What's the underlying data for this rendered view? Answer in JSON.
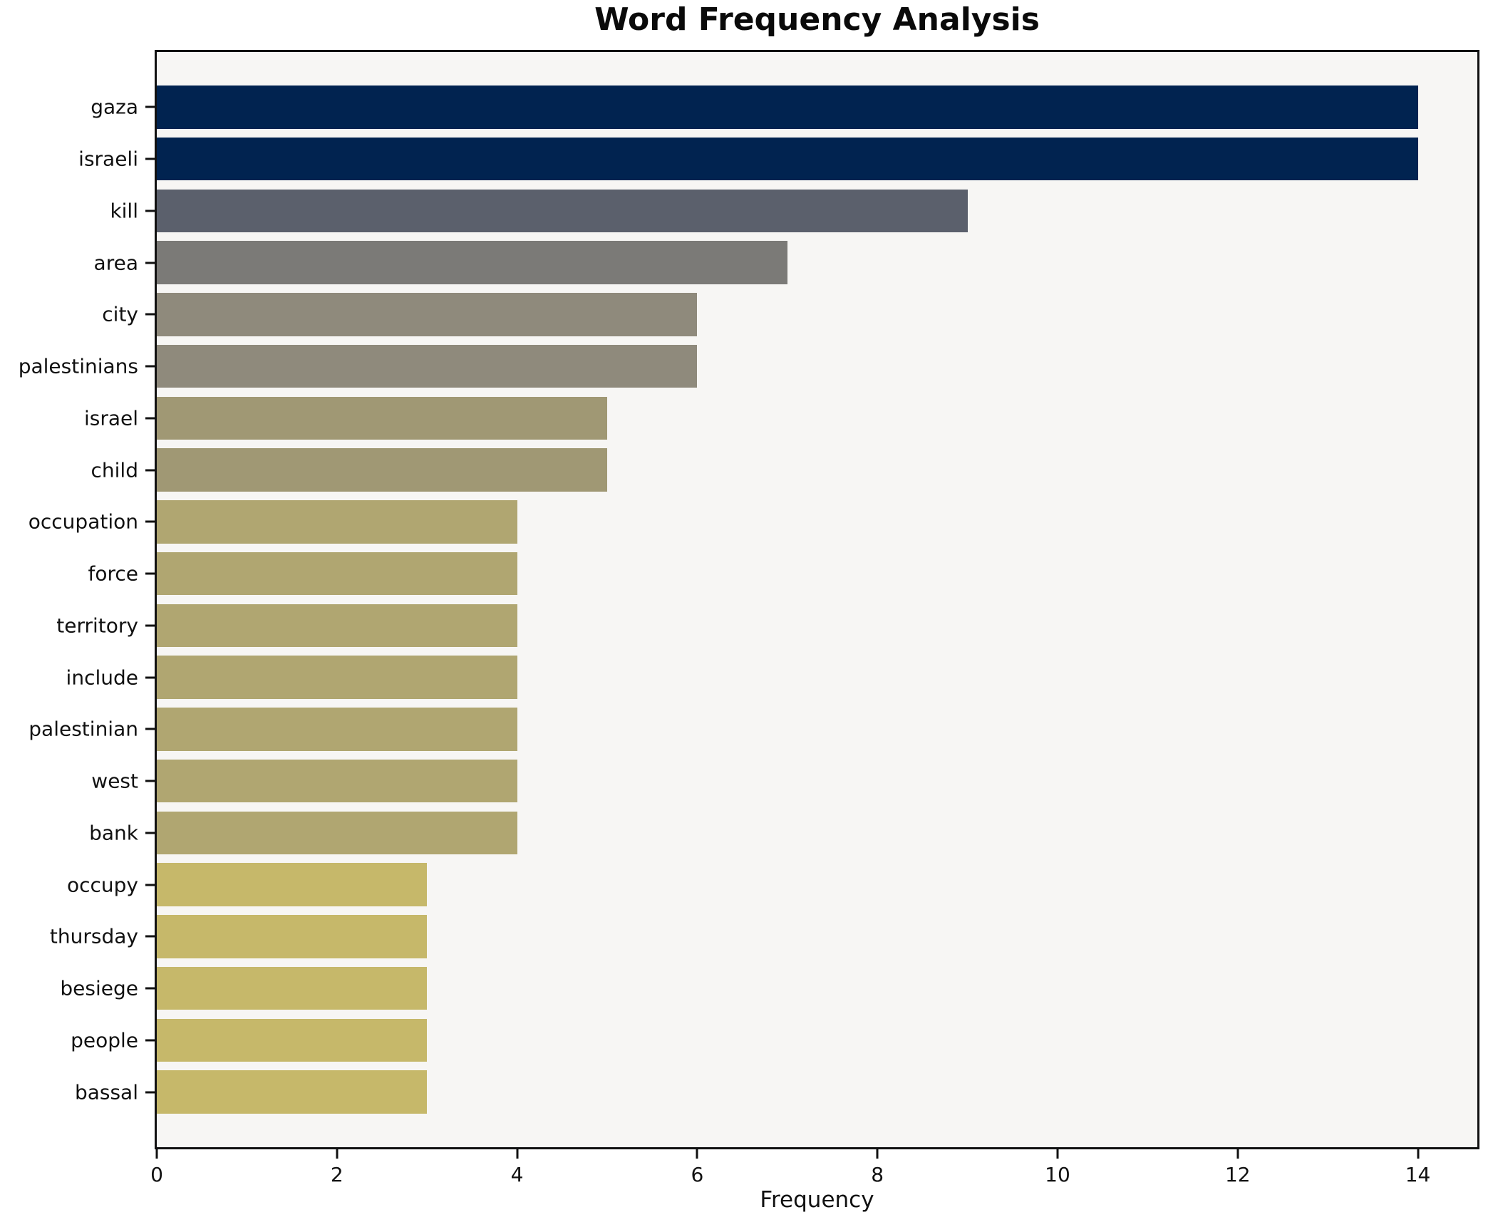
{
  "chart_data": {
    "type": "bar",
    "orientation": "horizontal",
    "title": "Word Frequency Analysis",
    "xlabel": "Frequency",
    "ylabel": "",
    "xlim": [
      0,
      14.66
    ],
    "xticks": [
      0,
      2,
      4,
      6,
      8,
      10,
      12,
      14
    ],
    "grid": false,
    "legend": false,
    "categories": [
      "gaza",
      "israeli",
      "kill",
      "area",
      "city",
      "palestinians",
      "israel",
      "child",
      "occupation",
      "force",
      "territory",
      "include",
      "palestinian",
      "west",
      "bank",
      "occupy",
      "thursday",
      "besiege",
      "people",
      "bassal"
    ],
    "values": [
      14,
      14,
      9,
      7,
      6,
      6,
      5,
      5,
      4,
      4,
      4,
      4,
      4,
      4,
      4,
      3,
      3,
      3,
      3,
      3
    ],
    "bar_colors": [
      "#012350",
      "#012350",
      "#5b606c",
      "#7b7a77",
      "#8f8a7c",
      "#8f8a7c",
      "#a09874",
      "#a09874",
      "#b0a671",
      "#b0a671",
      "#b0a671",
      "#b0a671",
      "#b0a671",
      "#b0a671",
      "#b0a671",
      "#c6b86a",
      "#c6b86a",
      "#c6b86a",
      "#c6b86a",
      "#c6b86a"
    ],
    "colors": {
      "figure_bg": "#ffffff",
      "plot_bg": "#f7f6f4",
      "axis": "#111111",
      "title_text": "#0a0a0a",
      "bar_highest": "#012350",
      "bar_lowest": "#c6b86a"
    }
  }
}
